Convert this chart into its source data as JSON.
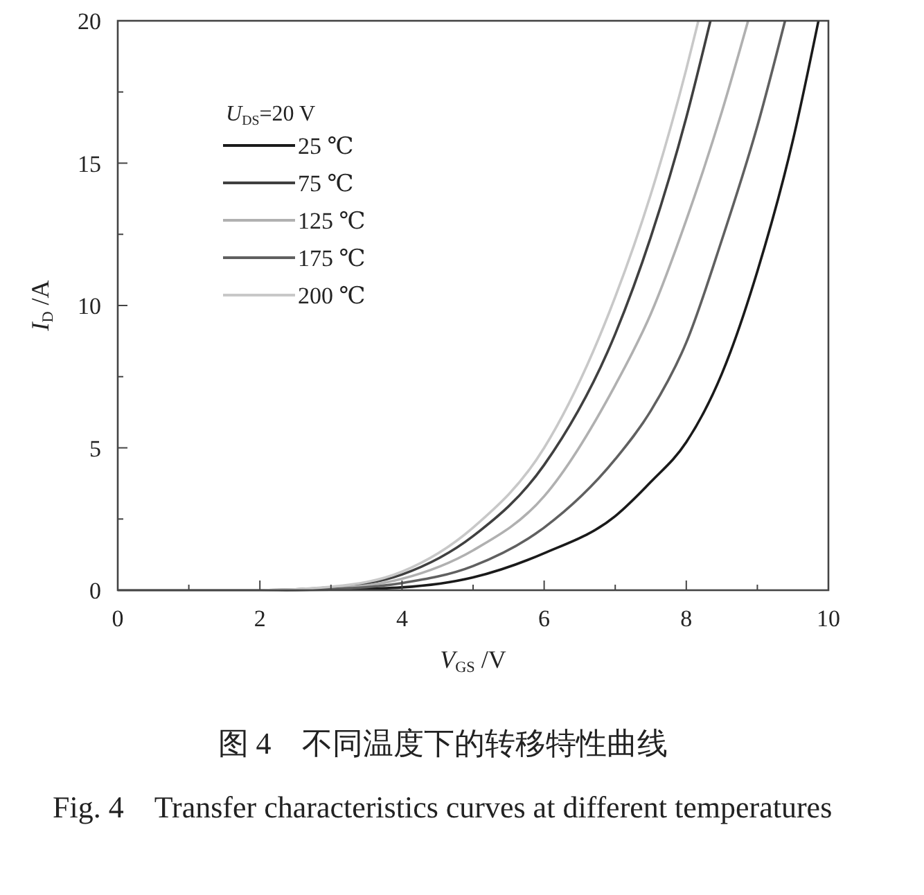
{
  "chart_data": {
    "type": "line",
    "title": "图 4　不同温度下的转移特性曲线",
    "subtitle": "Fig. 4　Transfer characteristics curves at different temperatures",
    "xlabel": "V$_{GS}$ /V",
    "ylabel": "I$_{D}$ /A",
    "legend_title": "U$_{DS}$=20 V",
    "legend": "top left",
    "grid": false,
    "marker": "none",
    "line_style": "solid",
    "xlim": [
      0,
      10
    ],
    "ylim": [
      0,
      20
    ],
    "xticks": [
      0,
      {
        "value": 1,
        "label": null
      },
      2,
      {
        "value": 3,
        "label": null
      },
      4,
      {
        "value": 5,
        "label": null
      },
      6,
      {
        "value": 7,
        "label": null
      },
      8,
      {
        "value": 9,
        "label": null
      },
      10
    ],
    "yticks": [
      0,
      {
        "value": 2.5,
        "label": null
      },
      5,
      {
        "value": 7.5,
        "label": null
      },
      10,
      {
        "value": 12.5,
        "label": null
      },
      15,
      {
        "value": 17.5,
        "label": null
      },
      20
    ],
    "series": [
      {
        "name": "25 ℃",
        "color": "#1a1a1a",
        "x": [
          0,
          2,
          3,
          4,
          5,
          6,
          7,
          7.5,
          8,
          8.5,
          9,
          9.5,
          9.86
        ],
        "values": [
          0,
          0,
          0.02,
          0.1,
          0.45,
          1.3,
          2.6,
          3.8,
          5.2,
          7.6,
          11.2,
          15.8,
          20
        ]
      },
      {
        "name": "75 ℃",
        "color": "#404040",
        "x": [
          0,
          2,
          3,
          4,
          5,
          6,
          7,
          7.5,
          8,
          8.34
        ],
        "values": [
          0,
          0,
          0.1,
          0.55,
          1.9,
          4.4,
          9.0,
          12.4,
          16.6,
          20
        ]
      },
      {
        "name": "125 ℃",
        "color": "#b0b0b0",
        "x": [
          0,
          2,
          3,
          4,
          5,
          6,
          7,
          7.5,
          8,
          8.5,
          8.87
        ],
        "values": [
          0,
          0,
          0.07,
          0.4,
          1.4,
          3.3,
          7.2,
          9.7,
          13.0,
          16.8,
          20
        ]
      },
      {
        "name": "175 ℃",
        "color": "#606060",
        "x": [
          0,
          2,
          3,
          4,
          5,
          6,
          7,
          7.5,
          8,
          8.5,
          9,
          9.39
        ],
        "values": [
          0,
          0,
          0.04,
          0.25,
          0.85,
          2.2,
          4.6,
          6.3,
          8.7,
          12.3,
          16.3,
          20
        ]
      },
      {
        "name": "200 ℃",
        "color": "#c8c8c8",
        "x": [
          0,
          2,
          3,
          4,
          5,
          6,
          7,
          7.5,
          8,
          8.17
        ],
        "values": [
          0,
          0,
          0.12,
          0.65,
          2.2,
          5.0,
          10.3,
          13.9,
          18.3,
          20
        ]
      }
    ]
  }
}
